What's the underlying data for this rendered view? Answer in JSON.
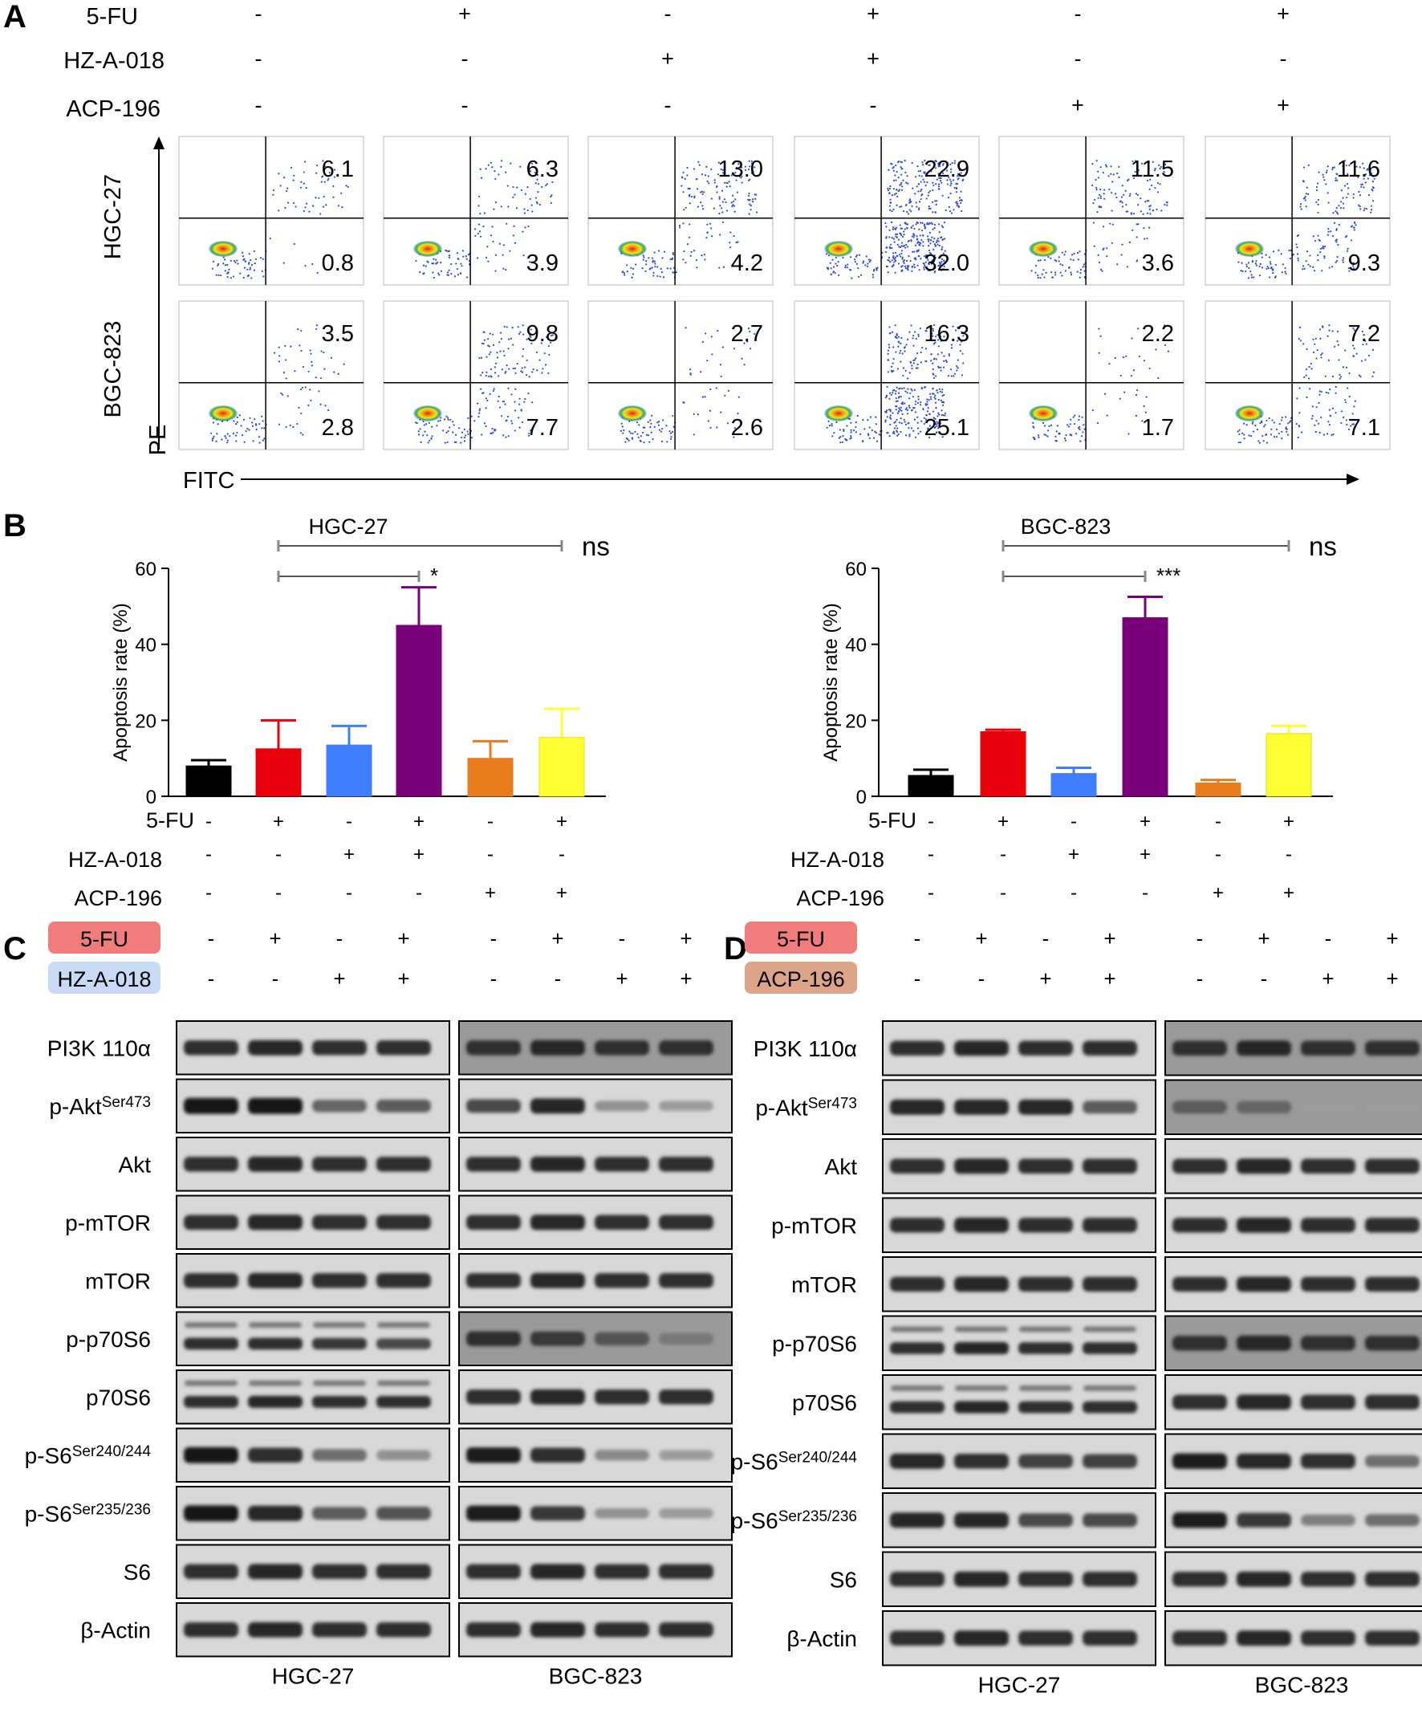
{
  "panel_letters": [
    "A",
    "B",
    "C",
    "D"
  ],
  "treatments": {
    "rows": [
      "5-FU",
      "HZ-A-018",
      "ACP-196"
    ],
    "signs": [
      [
        "-",
        "+",
        "-",
        "+",
        "-",
        "+"
      ],
      [
        "-",
        "-",
        "+",
        "+",
        "-",
        "-"
      ],
      [
        "-",
        "-",
        "-",
        "-",
        "+",
        "+"
      ]
    ]
  },
  "flow": {
    "cell_lines": [
      "HGC-27",
      "BGC-823"
    ],
    "x_axis": "FITC",
    "y_axis": "PE",
    "upper_right": [
      [
        "6.1",
        "6.3",
        "13.0",
        "22.9",
        "11.5",
        "11.6"
      ],
      [
        "3.5",
        "9.8",
        "2.7",
        "16.3",
        "2.2",
        "7.2"
      ]
    ],
    "lower_right": [
      [
        "0.8",
        "3.9",
        "4.2",
        "32.0",
        "3.6",
        "9.3"
      ],
      [
        "2.8",
        "7.7",
        "2.6",
        "25.1",
        "1.7",
        "7.1"
      ]
    ],
    "colors": {
      "dots": "#2a4bd6",
      "core_red": "#e0261b",
      "core_yellow": "#f3e21c",
      "core_green": "#2fb34a"
    }
  },
  "chart_data": [
    {
      "type": "bar",
      "title": "HGC-27",
      "ylabel": "Apoptosis rate (%)",
      "ylim": [
        0,
        60
      ],
      "yticks": [
        "0",
        "20",
        "40",
        "60"
      ],
      "categories": [
        "1",
        "2",
        "3",
        "4",
        "5",
        "6"
      ],
      "values": [
        8,
        12.5,
        13.5,
        45,
        10,
        15.5
      ],
      "errors": [
        1.5,
        7.5,
        5,
        10,
        4.5,
        7.5
      ],
      "colors": [
        "#000000",
        "#e8000b",
        "#3f7fff",
        "#7a007a",
        "#e87d1e",
        "#ffff33"
      ],
      "sig_bars": [
        {
          "from": 2,
          "to": 4,
          "label": "*"
        },
        {
          "from": 2,
          "to": 6,
          "label": "ns"
        }
      ]
    },
    {
      "type": "bar",
      "title": "BGC-823",
      "ylabel": "Apoptosis rate (%)",
      "ylim": [
        0,
        60
      ],
      "yticks": [
        "0",
        "20",
        "40",
        "60"
      ],
      "categories": [
        "1",
        "2",
        "3",
        "4",
        "5",
        "6"
      ],
      "values": [
        5.5,
        17,
        6,
        47,
        3.5,
        16.5
      ],
      "errors": [
        1.5,
        0.5,
        1.5,
        5.5,
        0.8,
        2
      ],
      "colors": [
        "#000000",
        "#e8000b",
        "#3f7fff",
        "#7a007a",
        "#e87d1e",
        "#ffff33"
      ],
      "sig_bars": [
        {
          "from": 2,
          "to": 4,
          "label": "***"
        },
        {
          "from": 2,
          "to": 6,
          "label": "ns"
        }
      ]
    }
  ],
  "blots": {
    "C": {
      "row1": {
        "label": "5-FU",
        "color": "#f07c7c",
        "signs": [
          "-",
          "+",
          "-",
          "+",
          "-",
          "+",
          "-",
          "+"
        ]
      },
      "row2": {
        "label": "HZ-A-018",
        "color": "#c9dbf4",
        "signs": [
          "-",
          "-",
          "+",
          "+",
          "-",
          "-",
          "+",
          "+"
        ]
      },
      "proteins": [
        {
          "name": "PI3K 110α",
          "sup": ""
        },
        {
          "name": "p-Akt",
          "sup": "Ser473"
        },
        {
          "name": "Akt",
          "sup": ""
        },
        {
          "name": "p-mTOR",
          "sup": ""
        },
        {
          "name": "mTOR",
          "sup": ""
        },
        {
          "name": "p-p70S6",
          "sup": ""
        },
        {
          "name": "p70S6",
          "sup": ""
        },
        {
          "name": "p-S6",
          "sup": "Ser240/244"
        },
        {
          "name": "p-S6",
          "sup": "Ser235/236"
        },
        {
          "name": "S6",
          "sup": ""
        },
        {
          "name": "β-Actin",
          "sup": ""
        }
      ],
      "cell_lines": [
        "HGC-27",
        "BGC-823"
      ]
    },
    "D": {
      "row1": {
        "label": "5-FU",
        "color": "#f07c7c",
        "signs": [
          "-",
          "+",
          "-",
          "+",
          "-",
          "+",
          "-",
          "+"
        ]
      },
      "row2": {
        "label": "ACP-196",
        "color": "#dca489",
        "signs": [
          "-",
          "-",
          "+",
          "+",
          "-",
          "-",
          "+",
          "+"
        ]
      },
      "proteins": [
        {
          "name": "PI3K 110α",
          "sup": ""
        },
        {
          "name": "p-Akt",
          "sup": "Ser473"
        },
        {
          "name": "Akt",
          "sup": ""
        },
        {
          "name": "p-mTOR",
          "sup": ""
        },
        {
          "name": "mTOR",
          "sup": ""
        },
        {
          "name": "p-p70S6",
          "sup": ""
        },
        {
          "name": "p70S6",
          "sup": ""
        },
        {
          "name": "p-S6",
          "sup": "Ser240/244"
        },
        {
          "name": "p-S6",
          "sup": "Ser235/236"
        },
        {
          "name": "S6",
          "sup": ""
        },
        {
          "name": "β-Actin",
          "sup": ""
        }
      ],
      "cell_lines": [
        "HGC-27",
        "BGC-823"
      ]
    }
  }
}
